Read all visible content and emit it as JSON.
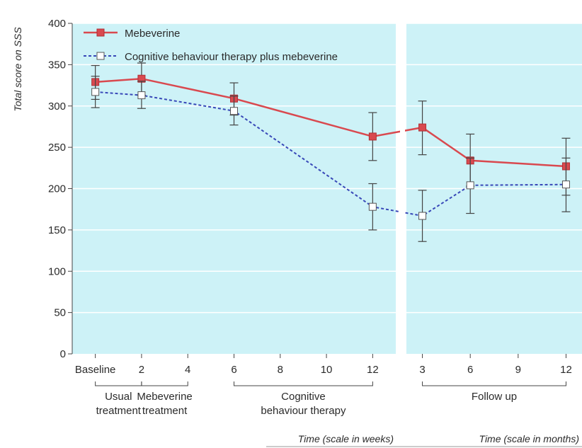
{
  "colors": {
    "panel": "#cdf2f7",
    "mebeverine": "#d9494f",
    "cbt": "#3848b8",
    "axis": "#444444",
    "error_bar": "#444444"
  },
  "chart_data": {
    "type": "line",
    "ylabel": "Total score on SSS",
    "ylim": [
      0,
      400
    ],
    "yticks": [
      0,
      50,
      100,
      150,
      200,
      250,
      300,
      350,
      400
    ],
    "panels": [
      {
        "id": "weeks",
        "xlabel": "Time (scale in weeks)",
        "xlim": [
          -1,
          13
        ],
        "ticks": [
          {
            "x": 0,
            "label": "Baseline"
          },
          {
            "x": 2,
            "label": "2"
          },
          {
            "x": 4,
            "label": "4"
          },
          {
            "x": 6,
            "label": "6"
          },
          {
            "x": 8,
            "label": "8"
          },
          {
            "x": 10,
            "label": "10"
          },
          {
            "x": 12,
            "label": "12"
          }
        ]
      },
      {
        "id": "months",
        "xlabel": "Time (scale in months)",
        "xlim": [
          2,
          13
        ],
        "ticks": [
          {
            "x": 3,
            "label": "3"
          },
          {
            "x": 6,
            "label": "6"
          },
          {
            "x": 9,
            "label": "9"
          },
          {
            "x": 12,
            "label": "12"
          }
        ]
      }
    ],
    "phases": [
      {
        "panel": "weeks",
        "from": 0,
        "to": 2,
        "lines": [
          "Usual",
          "treatment"
        ]
      },
      {
        "panel": "weeks",
        "from": 2,
        "to": 4,
        "lines": [
          "Mebeverine",
          "treatment"
        ]
      },
      {
        "panel": "weeks",
        "from": 6,
        "to": 12,
        "lines": [
          "Cognitive",
          "behaviour therapy"
        ]
      },
      {
        "panel": "months",
        "from": 3,
        "to": 12,
        "lines": [
          "Follow up"
        ]
      }
    ],
    "legend": {
      "placement": "top-left"
    },
    "series": [
      {
        "name": "Mebeverine",
        "style": "solid",
        "marker": "filled-square",
        "points": [
          {
            "panel": "weeks",
            "x": 0,
            "y": 329,
            "err": [
              308,
              349
            ]
          },
          {
            "panel": "weeks",
            "x": 2,
            "y": 333,
            "err": [
              313,
              352
            ]
          },
          {
            "panel": "weeks",
            "x": 6,
            "y": 309,
            "err": [
              289,
              328
            ]
          },
          {
            "panel": "weeks",
            "x": 12,
            "y": 263,
            "err": [
              234,
              292
            ]
          },
          {
            "panel": "months",
            "x": 3,
            "y": 274,
            "err": [
              241,
              306
            ]
          },
          {
            "panel": "months",
            "x": 6,
            "y": 234,
            "err": [
              203,
              266
            ]
          },
          {
            "panel": "months",
            "x": 12,
            "y": 227,
            "err": [
              192,
              261
            ]
          }
        ]
      },
      {
        "name": "Cognitive behaviour therapy plus mebeverine",
        "style": "dashed",
        "marker": "open-square",
        "points": [
          {
            "panel": "weeks",
            "x": 0,
            "y": 317,
            "err": [
              298,
              336
            ]
          },
          {
            "panel": "weeks",
            "x": 2,
            "y": 313,
            "err": [
              297,
              330
            ]
          },
          {
            "panel": "weeks",
            "x": 6,
            "y": 294,
            "err": [
              277,
              312
            ]
          },
          {
            "panel": "weeks",
            "x": 12,
            "y": 178,
            "err": [
              150,
              206
            ]
          },
          {
            "panel": "months",
            "x": 3,
            "y": 167,
            "err": [
              136,
              198
            ]
          },
          {
            "panel": "months",
            "x": 6,
            "y": 204,
            "err": [
              170,
              237
            ]
          },
          {
            "panel": "months",
            "x": 12,
            "y": 205,
            "err": [
              172,
              237
            ]
          }
        ]
      }
    ]
  }
}
